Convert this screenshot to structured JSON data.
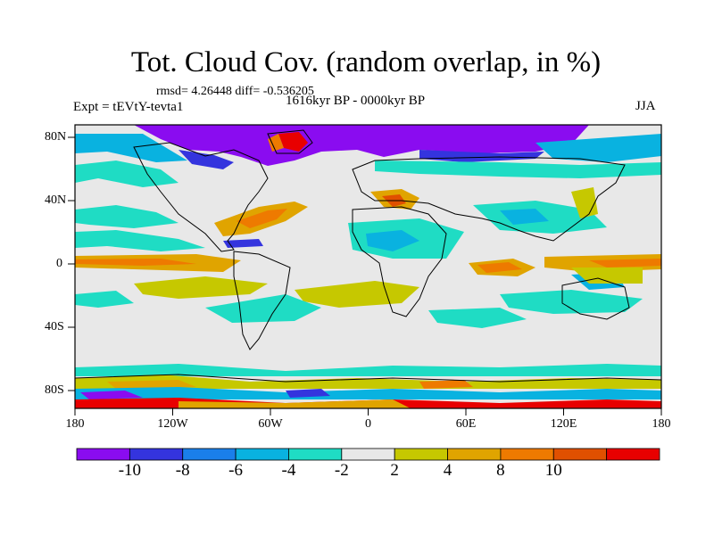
{
  "map": {
    "title": "Tot. Cloud Cov. (random overlap, in %)",
    "stats": "rmsd= 4.26448 diff= -0.536205",
    "period": "1616kyr BP - 0000kyr BP",
    "experiment": "Expt = tEVtY-tevta1",
    "season": "JJA",
    "lat_labels": [
      "80N",
      "40N",
      "0",
      "40S",
      "80S"
    ],
    "lon_labels": [
      "180",
      "120W",
      "60W",
      "0",
      "60E",
      "120E",
      "180"
    ]
  },
  "colorbar": {
    "labels": [
      "-10",
      "-8",
      "-6",
      "-4",
      "-2",
      "2",
      "4",
      "8",
      "10"
    ],
    "colors": [
      "#8a0cf0",
      "#3434de",
      "#1a7fea",
      "#09b2e0",
      "#1fdcc4",
      "#e8e8e8",
      "#c6c800",
      "#e0a400",
      "#ee7a00",
      "#e05000",
      "#e80000"
    ]
  },
  "colors": {
    "land_outline": "#000000",
    "neutral": "#e8e8e8"
  }
}
